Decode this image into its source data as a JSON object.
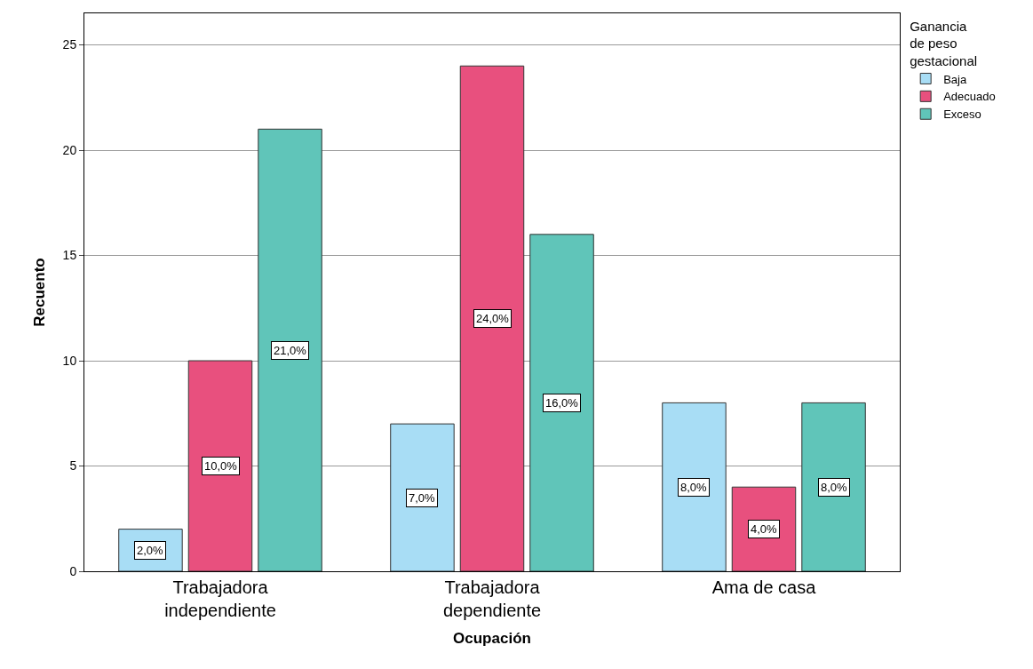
{
  "chart_data": {
    "type": "bar",
    "xlabel": "Ocupación",
    "ylabel": "Recuento",
    "legend_title": "Ganancia\nde peso\ngestacional",
    "categories": [
      "Trabajadora\nindependiente",
      "Trabajadora\ndependiente",
      "Ama de casa"
    ],
    "series": [
      {
        "name": "Baja",
        "color": "#a8ddf5",
        "values": [
          2,
          7,
          8
        ],
        "value_labels": [
          "2,0%",
          "7,0%",
          "8,0%"
        ]
      },
      {
        "name": "Adecuado",
        "color": "#e8507e",
        "values": [
          10,
          24,
          4
        ],
        "value_labels": [
          "10,0%",
          "24,0%",
          "4,0%"
        ]
      },
      {
        "name": "Exceso",
        "color": "#60c5b9",
        "values": [
          21,
          16,
          8
        ],
        "value_labels": [
          "21,0%",
          "16,0%",
          "8,0%"
        ]
      }
    ],
    "ylim": [
      0,
      26.5
    ],
    "yticks": [
      0,
      5,
      10,
      15,
      20,
      25
    ],
    "grid": "y",
    "legend": "top right"
  }
}
